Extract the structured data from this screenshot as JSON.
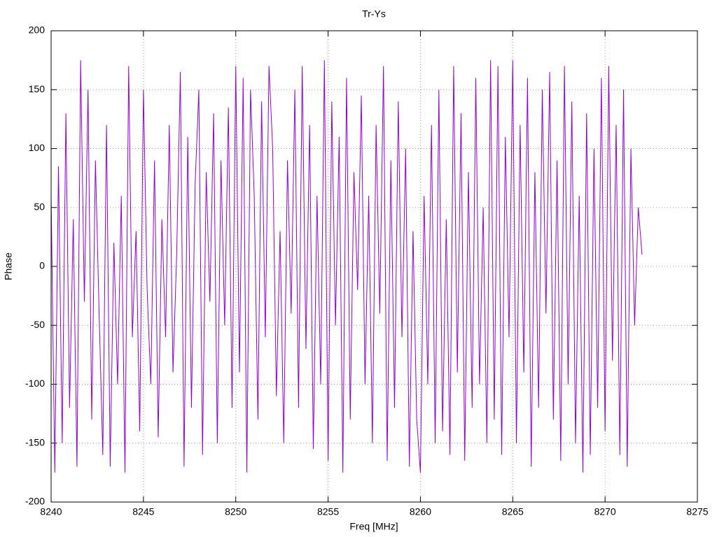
{
  "chart_data": {
    "type": "line",
    "title": "Tr-Ys",
    "x_label": "Freq [MHz]",
    "y_label": "Phase",
    "x": [
      8240,
      8240.2,
      8240.4,
      8240.6,
      8240.8,
      8241,
      8241.2,
      8241.4,
      8241.6,
      8241.8,
      8242,
      8242.2,
      8242.4,
      8242.6,
      8242.8,
      8243,
      8243.2,
      8243.4,
      8243.6,
      8243.8,
      8244,
      8244.2,
      8244.4,
      8244.6,
      8244.8,
      8245,
      8245.2,
      8245.4,
      8245.6,
      8245.8,
      8246,
      8246.2,
      8246.4,
      8246.6,
      8246.8,
      8247,
      8247.2,
      8247.4,
      8247.6,
      8247.8,
      8248,
      8248.2,
      8248.4,
      8248.6,
      8248.8,
      8249,
      8249.2,
      8249.4,
      8249.6,
      8249.8,
      8250,
      8250.2,
      8250.4,
      8250.6,
      8250.8,
      8251,
      8251.2,
      8251.4,
      8251.6,
      8251.8,
      8252,
      8252.2,
      8252.4,
      8252.6,
      8252.8,
      8253,
      8253.2,
      8253.4,
      8253.6,
      8253.8,
      8254,
      8254.2,
      8254.4,
      8254.6,
      8254.8,
      8255,
      8255.2,
      8255.4,
      8255.6,
      8255.8,
      8256,
      8256.2,
      8256.4,
      8256.6,
      8256.8,
      8257,
      8257.2,
      8257.4,
      8257.6,
      8257.8,
      8258,
      8258.2,
      8258.4,
      8258.6,
      8258.8,
      8259,
      8259.2,
      8259.4,
      8259.6,
      8259.8,
      8260,
      8260.2,
      8260.4,
      8260.6,
      8260.8,
      8261,
      8261.2,
      8261.4,
      8261.6,
      8261.8,
      8262,
      8262.2,
      8262.4,
      8262.6,
      8262.8,
      8263,
      8263.2,
      8263.4,
      8263.6,
      8263.8,
      8264,
      8264.2,
      8264.4,
      8264.6,
      8264.8,
      8265,
      8265.2,
      8265.4,
      8265.6,
      8265.8,
      8266,
      8266.2,
      8266.4,
      8266.6,
      8266.8,
      8267,
      8267.2,
      8267.4,
      8267.6,
      8267.8,
      8268,
      8268.2,
      8268.4,
      8268.6,
      8268.8,
      8269,
      8269.2,
      8269.4,
      8269.6,
      8269.8,
      8270,
      8270.2,
      8270.4,
      8270.6,
      8270.8,
      8271,
      8271.2,
      8271.4,
      8271.6,
      8271.8,
      8272
    ],
    "series": [
      {
        "color": "#9400d3",
        "values": [
          60,
          -175,
          85,
          -150,
          130,
          -120,
          40,
          -170,
          175,
          -30,
          150,
          -130,
          90,
          -40,
          -160,
          120,
          -170,
          20,
          -100,
          60,
          -175,
          170,
          -60,
          30,
          -140,
          150,
          -20,
          -100,
          90,
          -145,
          40,
          -60,
          120,
          -90,
          10,
          165,
          -170,
          110,
          -120,
          70,
          150,
          -160,
          80,
          -30,
          130,
          -150,
          90,
          -50,
          135,
          -120,
          170,
          -90,
          160,
          -175,
          150,
          60,
          -130,
          140,
          -60,
          170,
          100,
          -110,
          30,
          -150,
          90,
          -40,
          150,
          -120,
          170,
          -70,
          120,
          -155,
          60,
          -100,
          175,
          -165,
          140,
          -50,
          110,
          -175,
          160,
          -130,
          80,
          -20,
          145,
          -100,
          60,
          -150,
          120,
          -40,
          170,
          -165,
          90,
          -120,
          140,
          -60,
          100,
          -170,
          30,
          -130,
          -175,
          60,
          -100,
          120,
          -150,
          150,
          -140,
          40,
          -160,
          170,
          -90,
          130,
          -165,
          80,
          -120,
          160,
          -100,
          50,
          -150,
          175,
          -130,
          170,
          -160,
          110,
          -60,
          175,
          -150,
          120,
          -90,
          160,
          -170,
          80,
          -120,
          150,
          -40,
          165,
          -130,
          90,
          -165,
          170,
          -100,
          140,
          -150,
          60,
          -175,
          130,
          -160,
          100,
          -120,
          160,
          -140,
          170,
          -80,
          120,
          -160,
          150,
          -170,
          100,
          -50,
          50,
          10
        ]
      }
    ],
    "xlim": [
      8240,
      8275
    ],
    "xticks": [
      8240,
      8245,
      8250,
      8255,
      8260,
      8265,
      8270,
      8275
    ],
    "ylim": [
      -200,
      200
    ],
    "yticks": [
      -200,
      -150,
      -100,
      -50,
      0,
      50,
      100,
      150,
      200
    ],
    "grid": true
  }
}
